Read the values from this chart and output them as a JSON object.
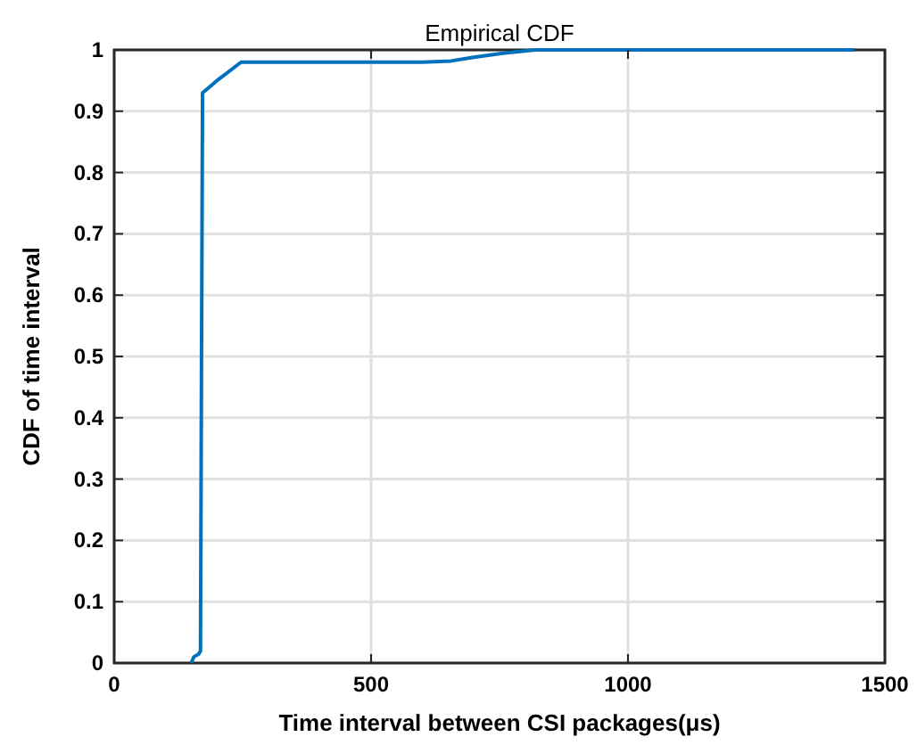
{
  "chart_data": {
    "type": "line",
    "title": "Empirical CDF",
    "xlabel": "Time interval between CSI packages(μs)",
    "ylabel": "CDF of time interval",
    "x": [
      150,
      155,
      165,
      168,
      170,
      172,
      200,
      247,
      400,
      600,
      656,
      700,
      760,
      820,
      1000,
      1200,
      1440
    ],
    "series": [
      {
        "color": "#0072bd",
        "values": [
          0,
          0.01,
          0.015,
          0.02,
          0.5,
          0.93,
          0.95,
          0.98,
          0.98,
          0.98,
          0.982,
          0.988,
          0.995,
          1,
          1,
          1,
          1
        ]
      }
    ],
    "xlim": [
      0,
      1500
    ],
    "xticks": [
      0,
      500,
      1000,
      1500
    ],
    "ylim": [
      0,
      1
    ],
    "yticks": [
      0,
      0.1,
      0.2,
      0.3,
      0.4,
      0.5,
      0.6,
      0.7,
      0.8,
      0.9,
      1
    ],
    "grid": true,
    "marker": "none",
    "line_style": "solid"
  }
}
